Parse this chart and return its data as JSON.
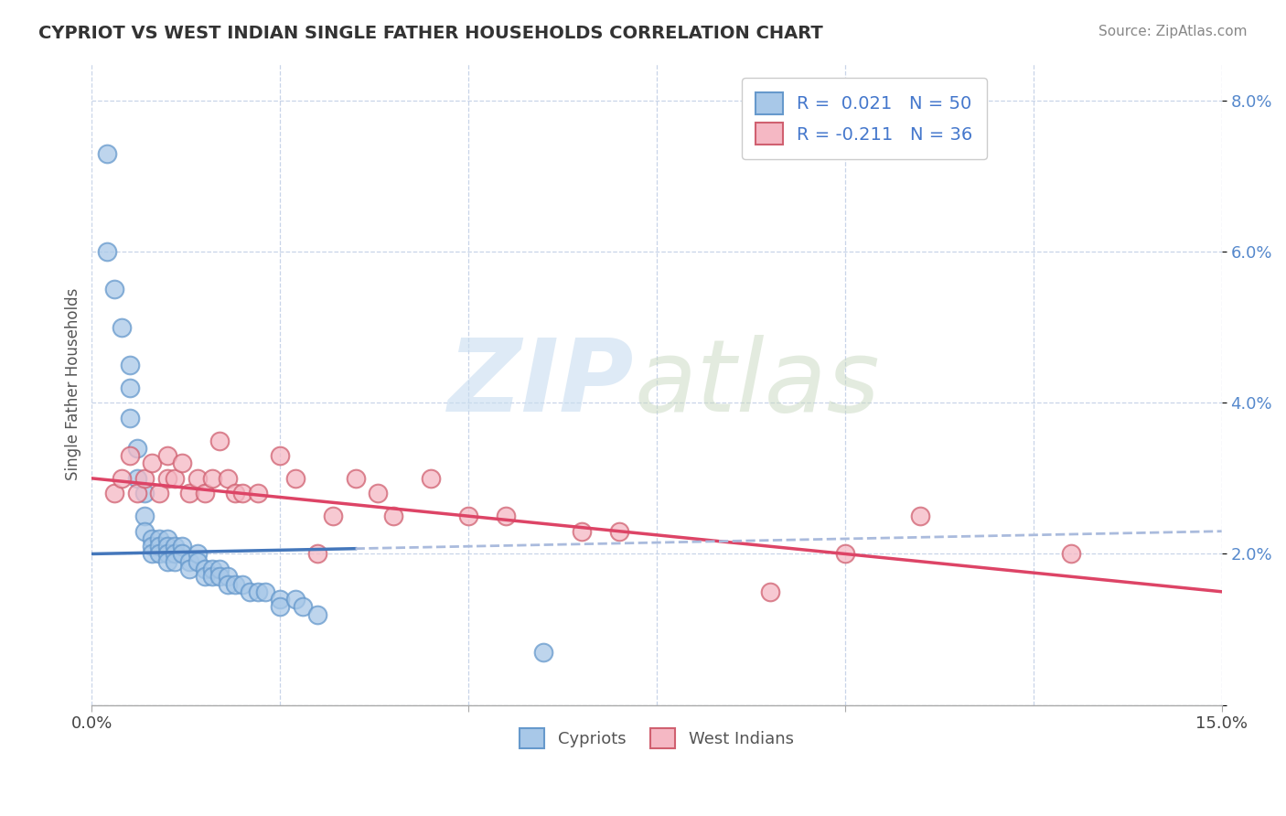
{
  "title": "CYPRIOT VS WEST INDIAN SINGLE FATHER HOUSEHOLDS CORRELATION CHART",
  "source": "Source: ZipAtlas.com",
  "ylabel": "Single Father Households",
  "xlim": [
    0.0,
    0.15
  ],
  "ylim": [
    0.0,
    0.085
  ],
  "yticks": [
    0.0,
    0.02,
    0.04,
    0.06,
    0.08
  ],
  "yticklabels": [
    "",
    "2.0%",
    "4.0%",
    "6.0%",
    "8.0%"
  ],
  "cypriot_color": "#a8c8e8",
  "cypriot_edge_color": "#6699cc",
  "west_indian_color": "#f5b8c4",
  "west_indian_edge_color": "#d06070",
  "cypriot_line_color": "#4477bb",
  "west_indian_line_color": "#dd4466",
  "dashed_line_color": "#aabbdd",
  "background_color": "#ffffff",
  "grid_color": "#c8d4e8",
  "cypriot_x": [
    0.002,
    0.002,
    0.003,
    0.004,
    0.005,
    0.005,
    0.005,
    0.006,
    0.006,
    0.007,
    0.007,
    0.007,
    0.008,
    0.008,
    0.008,
    0.009,
    0.009,
    0.009,
    0.01,
    0.01,
    0.01,
    0.01,
    0.011,
    0.011,
    0.011,
    0.012,
    0.012,
    0.013,
    0.013,
    0.014,
    0.014,
    0.015,
    0.015,
    0.016,
    0.016,
    0.017,
    0.017,
    0.018,
    0.018,
    0.019,
    0.02,
    0.021,
    0.022,
    0.023,
    0.025,
    0.025,
    0.027,
    0.028,
    0.03,
    0.06
  ],
  "cypriot_y": [
    0.073,
    0.06,
    0.055,
    0.05,
    0.045,
    0.042,
    0.038,
    0.034,
    0.03,
    0.028,
    0.025,
    0.023,
    0.022,
    0.021,
    0.02,
    0.022,
    0.021,
    0.02,
    0.022,
    0.021,
    0.02,
    0.019,
    0.021,
    0.02,
    0.019,
    0.021,
    0.02,
    0.019,
    0.018,
    0.02,
    0.019,
    0.018,
    0.017,
    0.018,
    0.017,
    0.018,
    0.017,
    0.017,
    0.016,
    0.016,
    0.016,
    0.015,
    0.015,
    0.015,
    0.014,
    0.013,
    0.014,
    0.013,
    0.012,
    0.007
  ],
  "west_indian_x": [
    0.003,
    0.004,
    0.005,
    0.006,
    0.007,
    0.008,
    0.009,
    0.01,
    0.01,
    0.011,
    0.012,
    0.013,
    0.014,
    0.015,
    0.016,
    0.017,
    0.018,
    0.019,
    0.02,
    0.022,
    0.025,
    0.027,
    0.03,
    0.032,
    0.035,
    0.038,
    0.04,
    0.045,
    0.05,
    0.055,
    0.065,
    0.07,
    0.09,
    0.1,
    0.11,
    0.13
  ],
  "west_indian_y": [
    0.028,
    0.03,
    0.033,
    0.028,
    0.03,
    0.032,
    0.028,
    0.033,
    0.03,
    0.03,
    0.032,
    0.028,
    0.03,
    0.028,
    0.03,
    0.035,
    0.03,
    0.028,
    0.028,
    0.028,
    0.033,
    0.03,
    0.02,
    0.025,
    0.03,
    0.028,
    0.025,
    0.03,
    0.025,
    0.025,
    0.023,
    0.023,
    0.015,
    0.02,
    0.025,
    0.02
  ],
  "r_cypriot": 0.021,
  "n_cypriot": 50,
  "r_west_indian": -0.211,
  "n_west_indian": 36
}
